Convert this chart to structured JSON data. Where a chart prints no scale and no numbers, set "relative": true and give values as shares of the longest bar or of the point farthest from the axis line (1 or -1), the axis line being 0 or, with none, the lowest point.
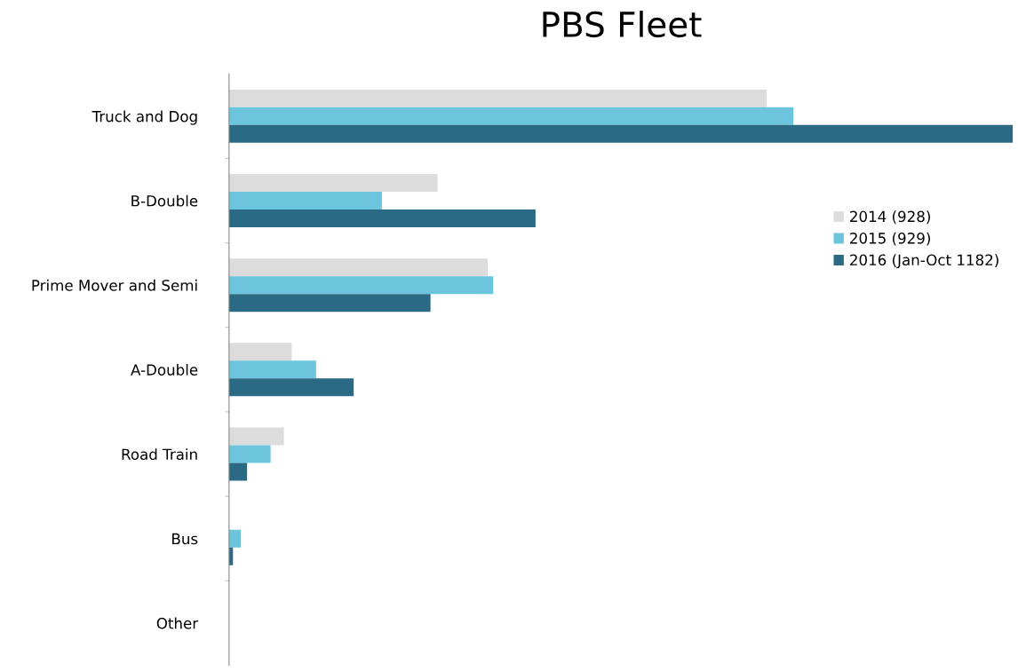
{
  "chart_data": {
    "type": "bar",
    "orientation": "horizontal",
    "relative": true,
    "title": "PBS Fleet",
    "categories": [
      "Truck and Dog",
      "B-Double",
      "Prime Mover and Semi",
      "A-Double",
      "Road Train",
      "Bus",
      "Other"
    ],
    "series": [
      {
        "name": "2014 (928)",
        "color": "#dcdcdc",
        "values": [
          0.686,
          0.266,
          0.33,
          0.08,
          0.07,
          null,
          null
        ]
      },
      {
        "name": "2015 (929)",
        "color": "#6cc5dd",
        "values": [
          0.72,
          0.195,
          0.337,
          0.111,
          0.053,
          0.015,
          null
        ]
      },
      {
        "name": "2016 (Jan-Oct 1182)",
        "color": "#2a6a85",
        "values": [
          1,
          0.391,
          0.257,
          0.159,
          0.023,
          0.005,
          null
        ]
      }
    ],
    "legend": "right",
    "grid": false
  }
}
